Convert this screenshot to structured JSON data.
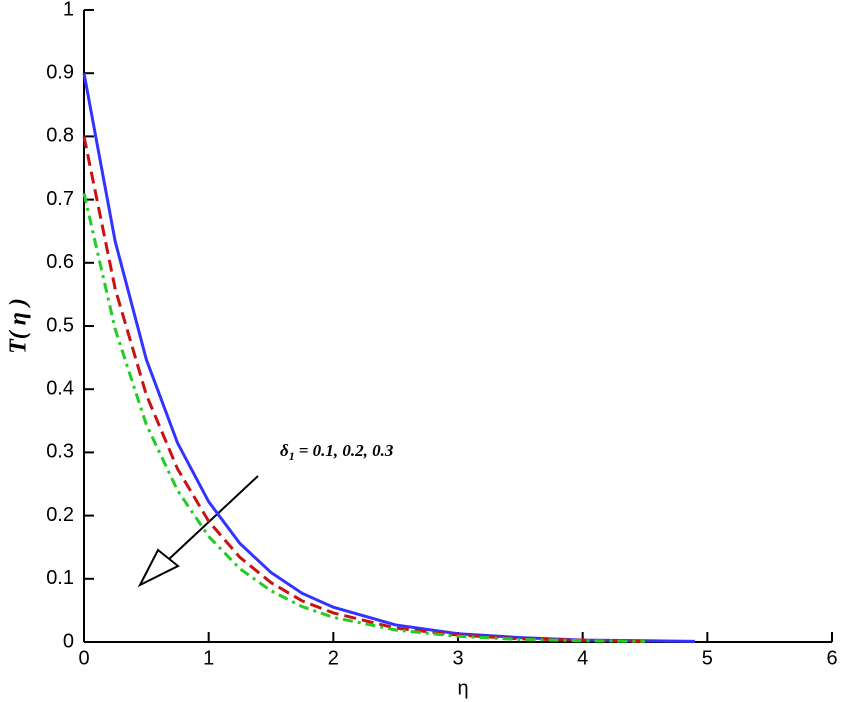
{
  "chart_data": {
    "type": "line",
    "x_label": "η",
    "y_label": "T( η )",
    "annotation": {
      "symbol": "δ",
      "subscript": "1",
      "text": "= 0.1, 0.2, 0.3"
    },
    "x": [
      0,
      0.25,
      0.5,
      0.75,
      1,
      1.25,
      1.5,
      1.75,
      2,
      2.5,
      3,
      3.5,
      4,
      4.5,
      4.9
    ],
    "series": [
      {
        "color": "#3333ff",
        "style": "solid",
        "values": [
          0.9,
          0.634,
          0.447,
          0.315,
          0.222,
          0.156,
          0.11,
          0.077,
          0.055,
          0.027,
          0.013,
          0.007,
          0.003,
          0.002,
          0.001
        ]
      },
      {
        "color": "#cc1111",
        "style": "dashed",
        "values": [
          0.8,
          0.559,
          0.391,
          0.274,
          0.191,
          0.134,
          0.094,
          0.065,
          0.046,
          0.022,
          0.011,
          0.005,
          0.003,
          0.001,
          null
        ]
      },
      {
        "color": "#22cc22",
        "style": "dashdot",
        "values": [
          0.71,
          0.495,
          0.344,
          0.24,
          0.167,
          0.116,
          0.081,
          0.056,
          0.039,
          0.019,
          0.009,
          0.004,
          0.002,
          0.001,
          null
        ]
      }
    ],
    "xlim": [
      0,
      6
    ],
    "xticks": [
      0,
      1,
      2,
      3,
      4,
      5,
      6
    ],
    "ylim": [
      0,
      1
    ],
    "yticks": [
      0,
      0.1,
      0.2,
      0.3,
      0.4,
      0.5,
      0.6,
      0.7,
      0.8,
      0.9,
      1
    ]
  }
}
